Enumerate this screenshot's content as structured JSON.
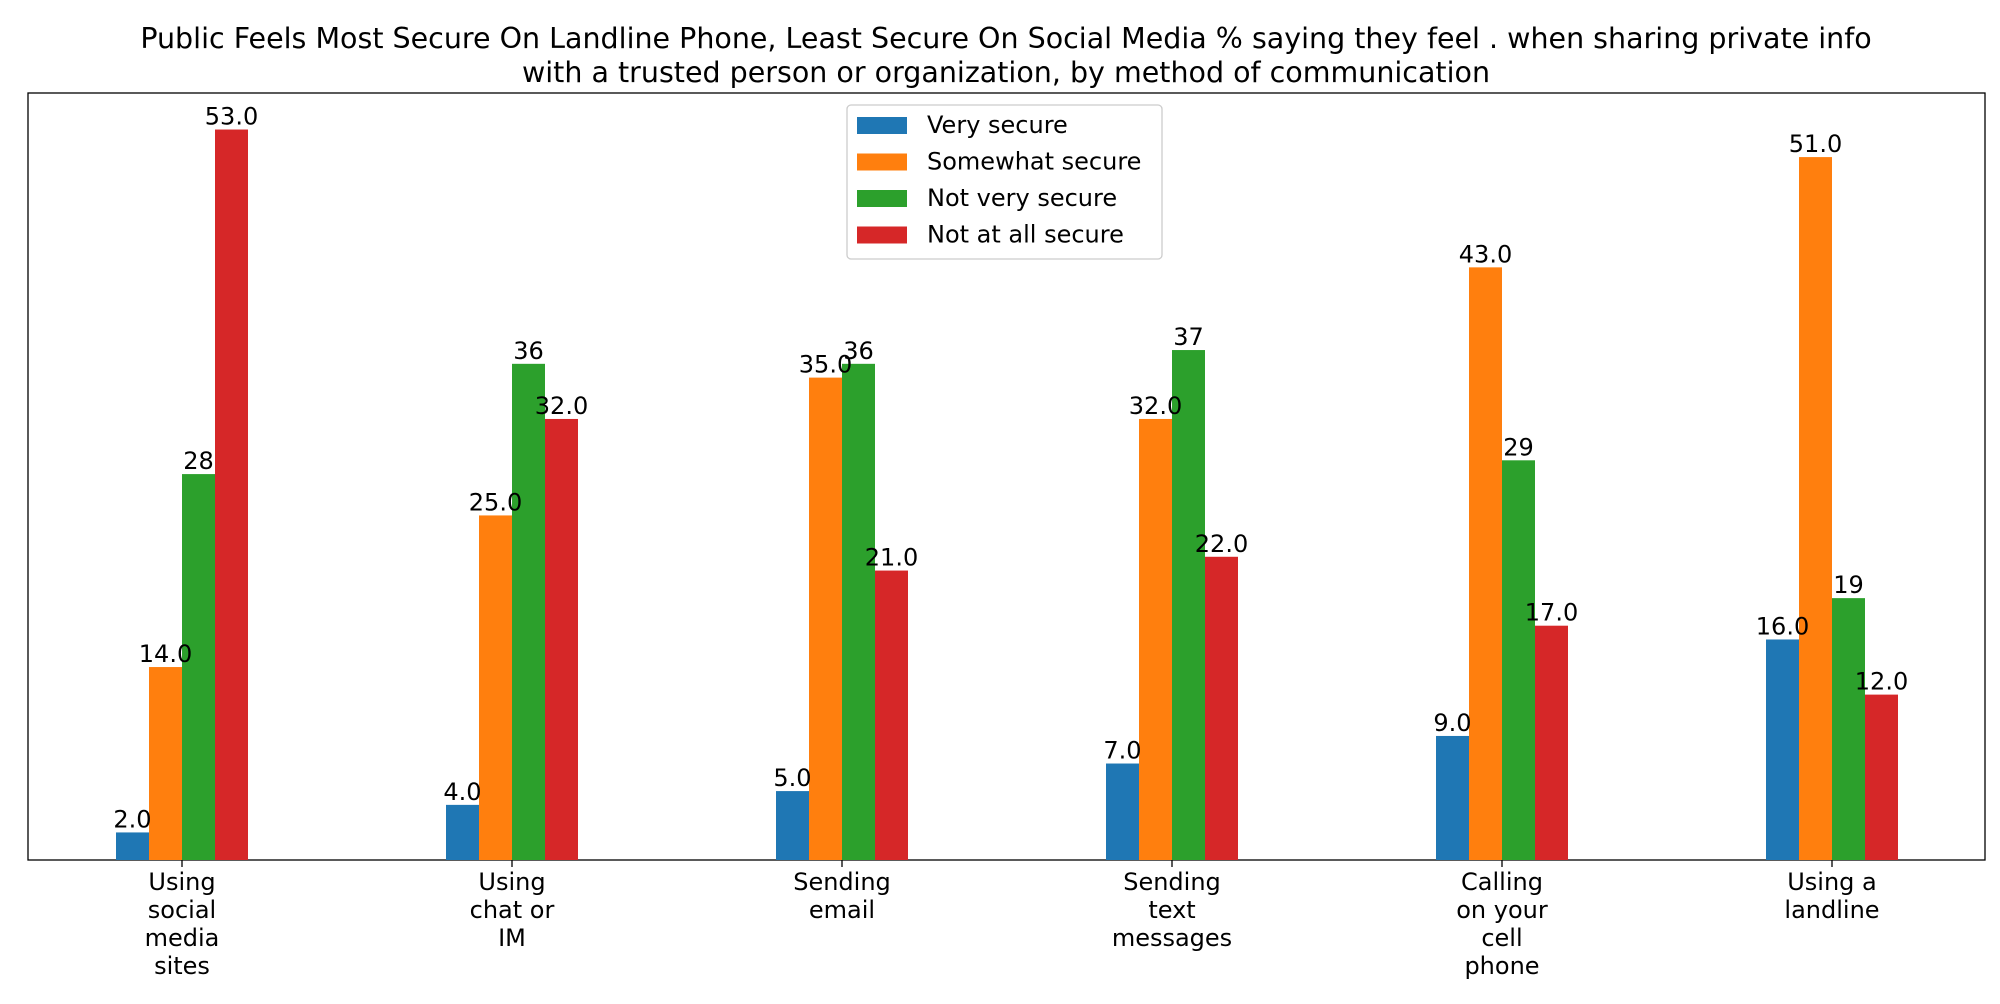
{
  "chart_data": {
    "type": "bar",
    "title": "Public Feels Most Secure On Landline Phone, Least Secure On Social Media % saying they feel . when sharing private info with a trusted person or organization, by method of communication",
    "title_lines": [
      "Public Feels Most Secure On Landline Phone, Least Secure On Social Media % saying they feel . when sharing private info",
      "with a trusted person or organization, by method of communication"
    ],
    "xlabel": "",
    "ylabel": "",
    "ylim": [
      0,
      55.65
    ],
    "grid": false,
    "legend_position": "top-center",
    "categories": [
      "Using social media sites",
      "Using chat or IM",
      "Sending email",
      "Sending text messages",
      "Calling on your cell phone",
      "Using a landline"
    ],
    "category_lines": [
      [
        "Using",
        "social",
        "media",
        "sites"
      ],
      [
        "Using",
        "chat or",
        "IM"
      ],
      [
        "Sending",
        "email"
      ],
      [
        "Sending",
        "text",
        "messages"
      ],
      [
        "Calling",
        "on your",
        "cell",
        "phone"
      ],
      [
        "Using a",
        "landline"
      ]
    ],
    "series": [
      {
        "name": "Very secure",
        "color": "#1f77b4",
        "values": [
          2,
          4,
          5,
          7,
          9,
          16
        ],
        "labels": [
          "2.0",
          "4.0",
          "5.0",
          "7.0",
          "9.0",
          "16.0"
        ]
      },
      {
        "name": "Somewhat secure",
        "color": "#ff7f0e",
        "values": [
          14,
          25,
          35,
          32,
          43,
          51
        ],
        "labels": [
          "14.0",
          "25.0",
          "35.0",
          "32.0",
          "43.0",
          "51.0"
        ]
      },
      {
        "name": "Not very secure",
        "color": "#2ca02c",
        "values": [
          28,
          36,
          36,
          37,
          29,
          19
        ],
        "labels": [
          "28",
          "36",
          "36",
          "37",
          "29",
          "19"
        ]
      },
      {
        "name": "Not at all secure",
        "color": "#d62728",
        "values": [
          53,
          32,
          21,
          22,
          17,
          12
        ],
        "labels": [
          "53.0",
          "32.0",
          "21.0",
          "22.0",
          "17.0",
          "12.0"
        ]
      }
    ]
  }
}
